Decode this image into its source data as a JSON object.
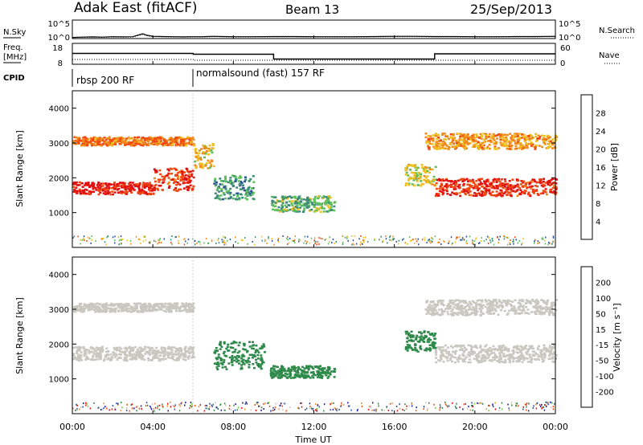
{
  "header": {
    "station": "Adak East (fitACF)",
    "beam": "Beam 13",
    "date": "25/Sep/2013"
  },
  "noise_panel": {
    "left_label": "N.Sky",
    "right_label": "N.Search",
    "ticks": [
      "10^5",
      "10^0"
    ]
  },
  "freq_panel": {
    "left_label_1": "Freq.",
    "left_label_2": "[MHz]",
    "left_ticks": [
      "18",
      "8"
    ],
    "right_label": "Nave",
    "right_ticks": [
      "60",
      "0"
    ]
  },
  "cpid_panel": {
    "label": "CPID",
    "segments": [
      {
        "start_hour": 0,
        "end_hour": 6,
        "text": "rbsp 200 RF"
      },
      {
        "start_hour": 6,
        "end_hour": 24,
        "text": "normalsound (fast) 157 RF"
      }
    ]
  },
  "power_panel": {
    "ylabel": "Slant Range [km]",
    "colorbar_label": "Power [dB]",
    "colorbar_ticks": [
      "4",
      "8",
      "12",
      "16",
      "20",
      "24",
      "28"
    ]
  },
  "velocity_panel": {
    "ylabel": "Slant Range [km]",
    "colorbar_label": "Velocity [m s⁻¹]",
    "colorbar_ticks": [
      "200",
      "100",
      "50",
      "15",
      "-15",
      "-50",
      "-100",
      "-200"
    ]
  },
  "xaxis": {
    "label": "Time UT",
    "ticks": [
      "00:00",
      "04:00",
      "08:00",
      "12:00",
      "16:00",
      "20:00",
      "00:00"
    ]
  },
  "colors": {
    "power_scale": [
      "#1a2bd6",
      "#2a4f9c",
      "#3c8a7a",
      "#5fbf5a",
      "#f0c020",
      "#f08a18",
      "#f04a10",
      "#e01010"
    ],
    "velocity_scale": [
      "#1a1a9c",
      "#2a55a0",
      "#2e8a4a",
      "#66cc33",
      "#c8c8c0",
      "#f09030",
      "#f05010",
      "#e01010"
    ]
  },
  "chart_data": [
    {
      "type": "line",
      "name": "N.Sky",
      "x_hours": [
        0,
        0.5,
        1,
        1.5,
        2,
        2.5,
        3,
        3.3,
        3.5,
        3.7,
        4,
        4.5,
        5,
        5.5,
        6,
        6.5,
        7,
        7.5,
        8,
        9,
        10,
        11,
        12,
        13,
        14,
        15,
        16,
        17,
        18,
        19,
        20,
        21,
        22,
        23,
        24
      ],
      "values_log10": [
        0.3,
        0.4,
        0.45,
        0.4,
        0.5,
        0.45,
        0.5,
        1.0,
        1.3,
        0.9,
        0.6,
        0.55,
        0.5,
        0.45,
        0.5,
        0.5,
        0.6,
        0.55,
        0.5,
        0.5,
        0.55,
        0.55,
        0.5,
        0.5,
        0.5,
        0.55,
        0.6,
        0.6,
        0.55,
        0.55,
        0.5,
        0.5,
        0.55,
        0.55,
        0.6
      ],
      "ylim_log10": [
        0,
        5
      ]
    },
    {
      "type": "step",
      "name": "Freq",
      "x_hours": [
        0,
        6,
        6,
        10,
        10,
        18,
        18,
        24
      ],
      "values": [
        13.2,
        13.2,
        12.8,
        12.8,
        10.5,
        10.5,
        13.0,
        13.0
      ],
      "ylim": [
        8,
        18
      ]
    },
    {
      "type": "heatmap",
      "name": "Power",
      "xlabel": "Time UT",
      "ylabel": "Slant Range [km]",
      "xlim_hours": [
        0,
        24
      ],
      "ylim_km": [
        0,
        4500
      ],
      "yticks_km": [
        1000,
        2000,
        3000,
        4000
      ],
      "color_range_db": [
        0,
        30
      ],
      "echo_regions": [
        {
          "t0": 0,
          "t1": 4,
          "range_km": [
            1550,
            1900
          ],
          "level": 28
        },
        {
          "t0": 4,
          "t1": 6,
          "range_km": [
            1650,
            2300
          ],
          "level": 26
        },
        {
          "t0": 0,
          "t1": 6,
          "range_km": [
            2950,
            3200
          ],
          "level": 22
        },
        {
          "t0": 6,
          "t1": 7,
          "range_km": [
            2300,
            3000
          ],
          "level": 18
        },
        {
          "t0": 7,
          "t1": 9,
          "range_km": [
            1400,
            2100
          ],
          "level": 10
        },
        {
          "t0": 9.8,
          "t1": 13,
          "range_km": [
            1050,
            1500
          ],
          "level": 12
        },
        {
          "t0": 16.5,
          "t1": 18,
          "range_km": [
            1800,
            2400
          ],
          "level": 16
        },
        {
          "t0": 18,
          "t1": 24,
          "range_km": [
            1500,
            2000
          ],
          "level": 26
        },
        {
          "t0": 17.5,
          "t1": 24,
          "range_km": [
            2850,
            3300
          ],
          "level": 20
        }
      ]
    },
    {
      "type": "heatmap",
      "name": "Velocity",
      "xlabel": "Time UT",
      "ylabel": "Slant Range [km]",
      "xlim_hours": [
        0,
        24
      ],
      "ylim_km": [
        0,
        4500
      ],
      "yticks_km": [
        1000,
        2000,
        3000,
        4000
      ],
      "color_range_ms": [
        -200,
        200
      ],
      "echo_regions": [
        {
          "t0": 0,
          "t1": 6,
          "range_km": [
            1550,
            1950
          ],
          "level": 0
        },
        {
          "t0": 0,
          "t1": 6,
          "range_km": [
            2950,
            3200
          ],
          "level": 0
        },
        {
          "t0": 7,
          "t1": 9.5,
          "range_km": [
            1300,
            2100
          ],
          "level": 40
        },
        {
          "t0": 9.8,
          "t1": 13,
          "range_km": [
            1050,
            1400
          ],
          "level": 40
        },
        {
          "t0": 16.5,
          "t1": 18,
          "range_km": [
            1800,
            2400
          ],
          "level": 40
        },
        {
          "t0": 18,
          "t1": 24,
          "range_km": [
            1500,
            2000
          ],
          "level": 0
        },
        {
          "t0": 17.5,
          "t1": 24,
          "range_km": [
            2850,
            3300
          ],
          "level": 0
        }
      ]
    }
  ]
}
